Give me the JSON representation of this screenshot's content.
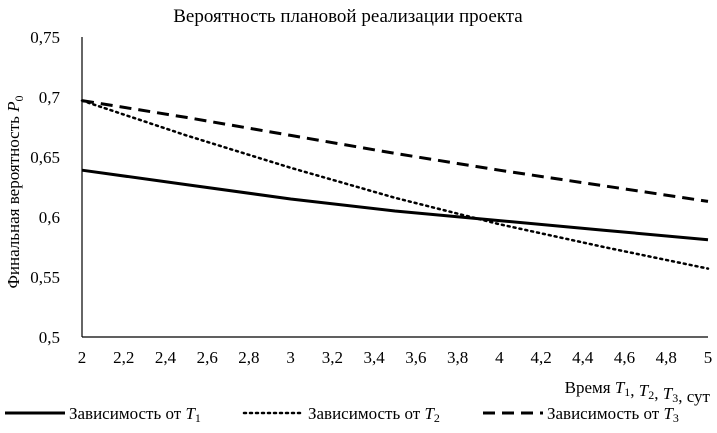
{
  "chart_data": {
    "type": "line",
    "title": "Вероятность плановой реализации проекта",
    "ylabel": "Финальная вероятность P0",
    "xlabel": "Время T1, T2, T3, сут",
    "ylim": [
      0.5,
      0.75
    ],
    "xlim": [
      2,
      5
    ],
    "y_ticks": [
      "0,5",
      "0,55",
      "0,6",
      "0,65",
      "0,7",
      "0,75"
    ],
    "y_tick_values": [
      0.5,
      0.55,
      0.6,
      0.65,
      0.7,
      0.75
    ],
    "x_ticks": [
      "2",
      "2,2",
      "2,4",
      "2,6",
      "2,8",
      "3",
      "3,2",
      "3,4",
      "3,6",
      "3,8",
      "4",
      "4,2",
      "4,4",
      "4,6",
      "4,8",
      "5"
    ],
    "x_tick_values": [
      2,
      2.2,
      2.4,
      2.6,
      2.8,
      3,
      3.2,
      3.4,
      3.6,
      3.8,
      4,
      4.2,
      4.4,
      4.6,
      4.8,
      5
    ],
    "grid": false,
    "legend_position": "bottom",
    "series": [
      {
        "name": "Зависимость от T1",
        "legend_prefix": "Зависимость от ",
        "legend_var": "T",
        "legend_sub": "1",
        "style": "solid",
        "color": "#000000",
        "x": [
          2,
          2.5,
          3,
          3.5,
          4,
          4.5,
          5
        ],
        "y": [
          0.639,
          0.627,
          0.615,
          0.605,
          0.597,
          0.589,
          0.581
        ]
      },
      {
        "name": "Зависимость от T2",
        "legend_prefix": "Зависимость от ",
        "legend_var": "T",
        "legend_sub": "2",
        "style": "dotted",
        "color": "#000000",
        "x": [
          2,
          2.5,
          3,
          3.5,
          4,
          4.5,
          5
        ],
        "y": [
          0.697,
          0.668,
          0.641,
          0.616,
          0.594,
          0.575,
          0.557
        ]
      },
      {
        "name": "Зависимость от T3",
        "legend_prefix": "Зависимость от ",
        "legend_var": "T",
        "legend_sub": "3",
        "style": "dashed",
        "color": "#000000",
        "x": [
          2,
          2.5,
          3,
          3.5,
          4,
          4.5,
          5
        ],
        "y": [
          0.697,
          0.683,
          0.668,
          0.653,
          0.639,
          0.626,
          0.613
        ]
      }
    ]
  }
}
